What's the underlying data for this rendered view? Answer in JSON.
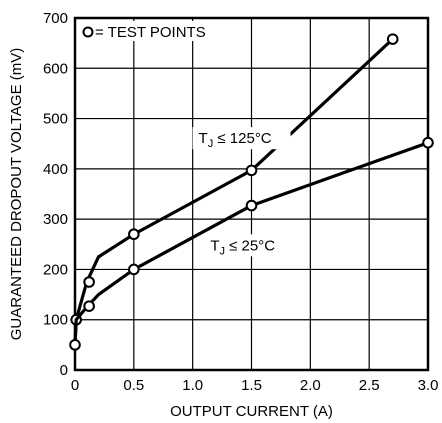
{
  "chart_data": {
    "type": "line",
    "xlabel": "OUTPUT CURRENT (A)",
    "ylabel": "GUARANTEED DROPOUT VOLTAGE (mV)",
    "xlim": [
      0,
      3.0
    ],
    "ylim": [
      0,
      700
    ],
    "xticks": [
      "0",
      "0.5",
      "1.0",
      "1.5",
      "2.0",
      "2.5",
      "3.0"
    ],
    "yticks": [
      "0",
      "100",
      "200",
      "300",
      "400",
      "500",
      "600",
      "700"
    ],
    "grid": true,
    "legend": {
      "marker": "circle",
      "label": "= TEST POINTS",
      "placement": "top-left"
    },
    "series": [
      {
        "annotation": {
          "main": "T",
          "sub": "J",
          "rest": " ≤ 125°C"
        },
        "line": [
          {
            "x": 0,
            "y": 50
          },
          {
            "x": 0.01,
            "y": 100
          },
          {
            "x": 0.1,
            "y": 175
          },
          {
            "x": 0.2,
            "y": 225
          },
          {
            "x": 0.5,
            "y": 270
          },
          {
            "x": 1.5,
            "y": 397
          },
          {
            "x": 2.7,
            "y": 658
          }
        ],
        "test_points": [
          {
            "x": 0.01,
            "y": 100
          },
          {
            "x": 0.12,
            "y": 175
          },
          {
            "x": 0.5,
            "y": 270
          },
          {
            "x": 1.5,
            "y": 397
          },
          {
            "x": 2.7,
            "y": 658
          }
        ]
      },
      {
        "annotation": {
          "main": "T",
          "sub": "J",
          "rest": " ≤ 25°C"
        },
        "line": [
          {
            "x": 0,
            "y": 50
          },
          {
            "x": 0.01,
            "y": 100
          },
          {
            "x": 0.1,
            "y": 125
          },
          {
            "x": 0.2,
            "y": 150
          },
          {
            "x": 0.5,
            "y": 200
          },
          {
            "x": 1.5,
            "y": 327
          },
          {
            "x": 3.0,
            "y": 452
          }
        ],
        "test_points": [
          {
            "x": 0,
            "y": 50
          },
          {
            "x": 0.12,
            "y": 127
          },
          {
            "x": 0.5,
            "y": 200
          },
          {
            "x": 1.5,
            "y": 327
          },
          {
            "x": 3.0,
            "y": 452
          }
        ]
      }
    ]
  }
}
